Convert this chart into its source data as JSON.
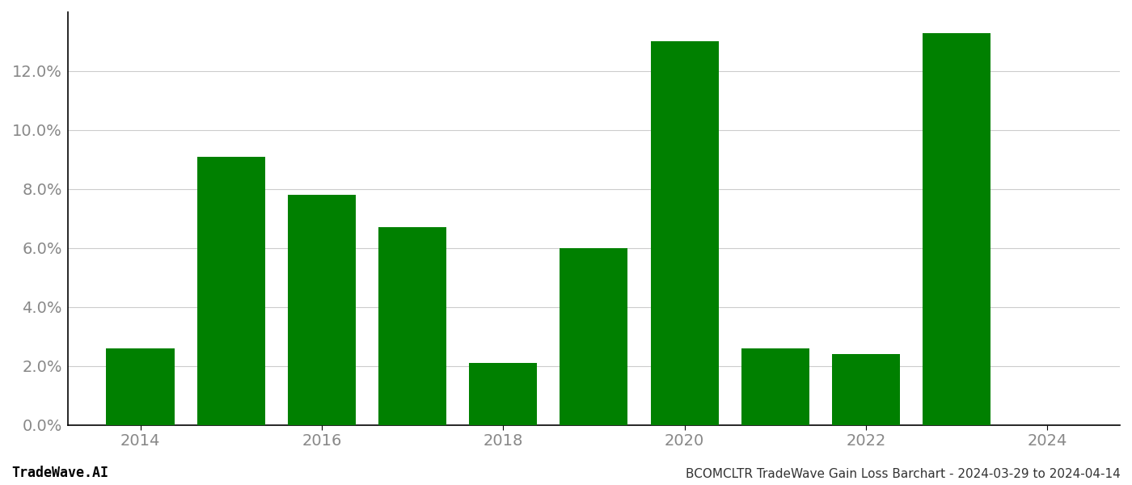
{
  "years": [
    2014,
    2015,
    2016,
    2017,
    2018,
    2019,
    2020,
    2021,
    2022,
    2023
  ],
  "values": [
    0.026,
    0.091,
    0.078,
    0.067,
    0.021,
    0.06,
    0.13,
    0.026,
    0.024,
    0.133
  ],
  "bar_color": "#008000",
  "background_color": "#ffffff",
  "title": "BCOMCLTR TradeWave Gain Loss Barchart - 2024-03-29 to 2024-04-14",
  "watermark": "TradeWave.AI",
  "title_fontsize": 11,
  "watermark_fontsize": 12,
  "ytick_fontsize": 14,
  "xtick_fontsize": 14,
  "ylim": [
    0,
    0.14
  ],
  "yticks": [
    0.0,
    0.02,
    0.04,
    0.06,
    0.08,
    0.1,
    0.12
  ],
  "xticks": [
    2014,
    2016,
    2018,
    2020,
    2022,
    2024
  ],
  "xlim": [
    2013.2,
    2024.8
  ],
  "grid_color": "#cccccc",
  "axis_color": "#000000",
  "tick_color": "#888888",
  "bar_width": 0.75
}
